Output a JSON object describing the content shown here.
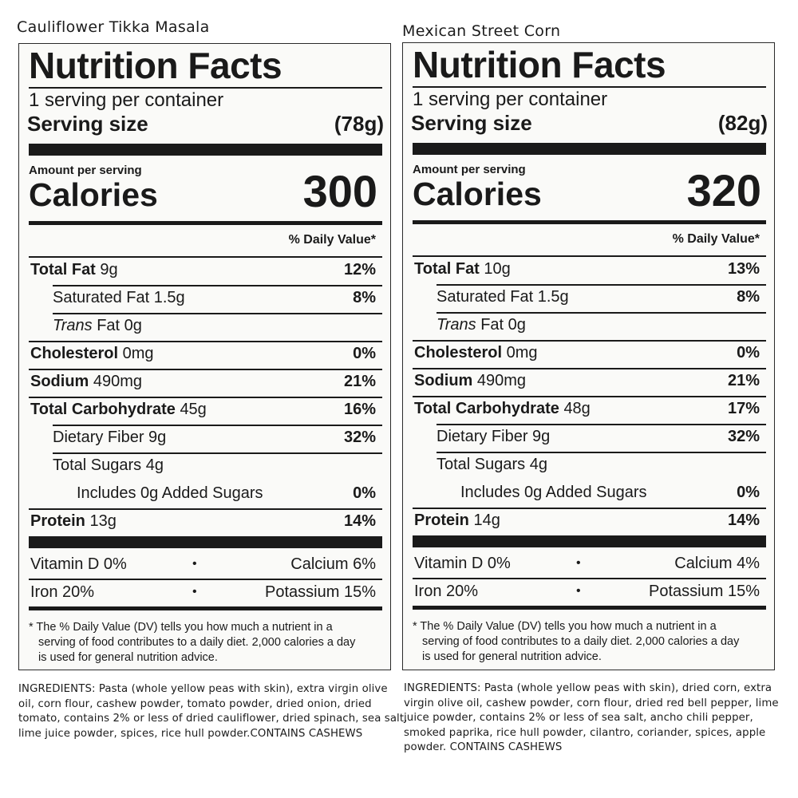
{
  "products": [
    {
      "title": "Cauliflower Tikka Masala",
      "nf_title": "Nutrition Facts",
      "servings_per_container": "1 serving per container",
      "serving_size_label": "Serving size",
      "serving_size_value": "(78g)",
      "amount_per_serving": "Amount per serving",
      "calories_label": "Calories",
      "calories_value": "300",
      "dv_header": "% Daily Value*",
      "nutrients": [
        {
          "bold": "Total Fat",
          "rest": "9g",
          "pct": "12%"
        },
        {
          "bold": "",
          "rest": "Saturated Fat 1.5g",
          "pct": "8%"
        },
        {
          "italic": "Trans",
          "rest": "Fat 0g",
          "pct": ""
        },
        {
          "bold": "Cholesterol",
          "rest": "0mg",
          "pct": "0%"
        },
        {
          "bold": "Sodium",
          "rest": "490mg",
          "pct": "21%"
        },
        {
          "bold": "Total Carbohydrate",
          "rest": "45g",
          "pct": "16%"
        },
        {
          "bold": "",
          "rest": "Dietary Fiber 9g",
          "pct": "32%"
        },
        {
          "bold": "",
          "rest": "Total Sugars 4g",
          "pct": ""
        },
        {
          "bold": "",
          "rest": "Includes 0g Added Sugars",
          "pct": "0%"
        },
        {
          "bold": "Protein",
          "rest": "13g",
          "pct": "14%"
        }
      ],
      "vitamins": [
        {
          "a": "Vitamin D  0%",
          "dot": "•",
          "b": "Calcium  6%"
        },
        {
          "a": "Iron  20%",
          "dot": "•",
          "b": "Potassium  15%"
        }
      ],
      "footnote": [
        "* The % Daily Value (DV) tells you how much a nutrient in a",
        "serving of food contributes to a daily diet. 2,000 calories a day",
        "is used for general nutrition advice."
      ],
      "ingredients": [
        "INGREDIENTS: Pasta (whole yellow peas with skin), extra virgin olive",
        "oil, corn flour, cashew powder, tomato powder, dried onion, dried",
        "tomato, contains 2% or less of dried cauliflower, dried spinach, sea salt,",
        "lime juice powder, spices, rice hull powder.CONTAINS CASHEWS"
      ]
    },
    {
      "title": "Mexican Street Corn",
      "nf_title": "Nutrition Facts",
      "servings_per_container": "1 serving per container",
      "serving_size_label": "Serving size",
      "serving_size_value": "(82g)",
      "amount_per_serving": "Amount per serving",
      "calories_label": "Calories",
      "calories_value": "320",
      "dv_header": "% Daily Value*",
      "nutrients": [
        {
          "bold": "Total Fat",
          "rest": "10g",
          "pct": "13%"
        },
        {
          "bold": "",
          "rest": "Saturated Fat 1.5g",
          "pct": "8%"
        },
        {
          "italic": "Trans",
          "rest": "Fat 0g",
          "pct": ""
        },
        {
          "bold": "Cholesterol",
          "rest": "0mg",
          "pct": "0%"
        },
        {
          "bold": "Sodium",
          "rest": "490mg",
          "pct": "21%"
        },
        {
          "bold": "Total Carbohydrate",
          "rest": "48g",
          "pct": "17%"
        },
        {
          "bold": "",
          "rest": "Dietary Fiber 9g",
          "pct": "32%"
        },
        {
          "bold": "",
          "rest": "Total Sugars 4g",
          "pct": ""
        },
        {
          "bold": "",
          "rest": "Includes 0g Added Sugars",
          "pct": "0%"
        },
        {
          "bold": "Protein",
          "rest": "14g",
          "pct": "14%"
        }
      ],
      "vitamins": [
        {
          "a": "Vitamin D  0%",
          "dot": "•",
          "b": "Calcium  4%"
        },
        {
          "a": "Iron  20%",
          "dot": "•",
          "b": "Potassium  15%"
        }
      ],
      "footnote": [
        "* The % Daily Value (DV) tells you how much a nutrient in a",
        "serving of food contributes to a daily diet. 2,000 calories a day",
        "is used for general nutrition advice."
      ],
      "ingredients": [
        "INGREDIENTS: Pasta (whole yellow peas with skin), dried corn, extra",
        "virgin olive oil, cashew powder, corn flour, dried red bell pepper, lime",
        "juice powder, contains 2% or less of sea salt, ancho chili pepper,",
        "smoked paprika, rice hull powder, cilantro, coriander, spices, apple",
        "powder. CONTAINS CASHEWS"
      ]
    }
  ]
}
